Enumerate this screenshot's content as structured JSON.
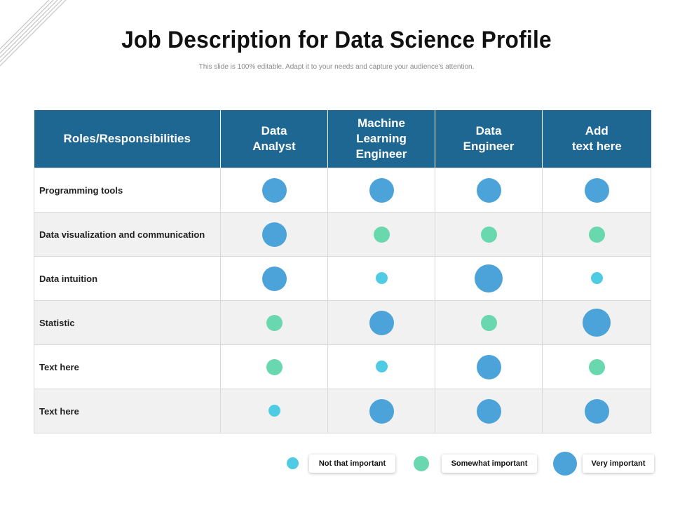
{
  "title": "Job Description for Data Science Profile",
  "subtitle": "This slide is 100% editable. Adapt it to your needs and capture your audience's attention.",
  "table": {
    "header": [
      "Roles/Responsibilities",
      "Data\nAnalyst",
      "Machine\nLearning\nEngineer",
      "Data\nEngineer",
      "Add\ntext here"
    ],
    "rows": [
      {
        "label": "Programming tools",
        "ratings": [
          "very",
          "very",
          "very",
          "very"
        ]
      },
      {
        "label": "Data visualization and communication",
        "ratings": [
          "very",
          "somewhat",
          "somewhat",
          "somewhat"
        ]
      },
      {
        "label": "Data intuition",
        "ratings": [
          "very",
          "not",
          "very-xl",
          "not"
        ]
      },
      {
        "label": "Statistic",
        "ratings": [
          "somewhat",
          "very",
          "somewhat",
          "very-xl"
        ]
      },
      {
        "label": "Text here",
        "ratings": [
          "somewhat",
          "not",
          "very",
          "somewhat"
        ]
      },
      {
        "label": "Text here",
        "ratings": [
          "not",
          "very",
          "very",
          "very"
        ]
      }
    ]
  },
  "legend": [
    {
      "key": "not",
      "label": "Not that important",
      "color": "#4fcbe3"
    },
    {
      "key": "somewhat",
      "label": "Somewhat important",
      "color": "#6ad8ae"
    },
    {
      "key": "very",
      "label": "Very important",
      "color": "#4ca3d9"
    }
  ],
  "colors": {
    "header_bg": "#1f6793",
    "row_alt_bg": "#f1f1f1"
  }
}
